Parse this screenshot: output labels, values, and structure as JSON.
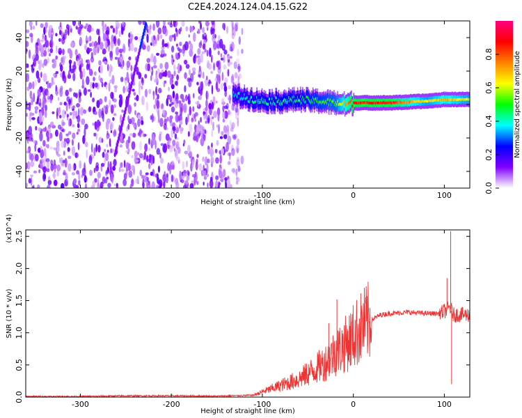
{
  "title": "C2E4.2024.124.04.15.G22",
  "chart_data": [
    {
      "type": "heatmap",
      "xlabel": "Height of straight line (km)",
      "ylabel": "Frequency (Hz)",
      "xlim": [
        -360,
        128
      ],
      "ylim": [
        -50,
        50
      ],
      "xticks": [
        -300,
        -200,
        -100,
        0,
        100
      ],
      "yticks": [
        -40,
        -20,
        0,
        20,
        40
      ],
      "colorbar": {
        "label": "Normalized spectral amplitude",
        "range": [
          0.0,
          1.0
        ],
        "ticks": [
          0.0,
          0.2,
          0.4,
          0.6,
          0.8
        ],
        "tick_labels": [
          "0.0",
          "0.2",
          "0.4",
          "0.6",
          "0.8"
        ],
        "colormap": [
          "#ffffff",
          "#8000ff",
          "#0000ff",
          "#00ffff",
          "#00ff00",
          "#ffff00",
          "#ff8000",
          "#ff0000",
          "#ff0080"
        ]
      },
      "noise_region_x": [
        -360,
        -122
      ],
      "signal_track": [
        {
          "x": -133,
          "freq": 6,
          "amp": 0.35
        },
        {
          "x": -120,
          "freq": 4,
          "amp": 0.4
        },
        {
          "x": -100,
          "freq": 2,
          "amp": 0.42
        },
        {
          "x": -80,
          "freq": 2,
          "amp": 0.45
        },
        {
          "x": -60,
          "freq": 3,
          "amp": 0.45
        },
        {
          "x": -40,
          "freq": 2,
          "amp": 0.5
        },
        {
          "x": -20,
          "freq": 1,
          "amp": 0.55
        },
        {
          "x": -10,
          "freq": 0,
          "amp": 0.7
        },
        {
          "x": 0,
          "freq": 1,
          "amp": 0.85
        },
        {
          "x": 40,
          "freq": 1,
          "amp": 0.85
        },
        {
          "x": 80,
          "freq": 2,
          "amp": 0.6
        },
        {
          "x": 100,
          "freq": 3,
          "amp": 0.7
        },
        {
          "x": 128,
          "freq": 3,
          "amp": 0.6
        }
      ],
      "streak": {
        "x_start": -262,
        "freq_start": -30,
        "x_end": -228,
        "freq_end": 48
      }
    },
    {
      "type": "line",
      "xlabel": "Height of straight line (km)",
      "ylabel": "SNR (10 * v/v)",
      "y_multiplier": "(x10^4)",
      "xlim": [
        -360,
        128
      ],
      "ylim": [
        0,
        2.6
      ],
      "xticks": [
        -300,
        -200,
        -100,
        0,
        100
      ],
      "yticks": [
        0.0,
        0.5,
        1.0,
        1.5,
        2.0,
        2.5
      ],
      "ytick_labels": [
        "0.0",
        "0.5",
        "1.0",
        "1.5",
        "2.0",
        "2.5"
      ],
      "color": "#ee3333",
      "series": [
        {
          "x": [
            -360,
            -300,
            -250,
            -200,
            -150,
            -110,
            -100,
            -80,
            -60,
            -40,
            -30,
            -20,
            -10,
            0,
            10,
            20,
            30,
            40,
            60,
            80,
            95,
            102,
            106,
            110,
            128
          ],
          "y": [
            0.01,
            0.01,
            0.02,
            0.02,
            0.015,
            0.03,
            0.08,
            0.18,
            0.28,
            0.45,
            0.55,
            0.7,
            0.8,
            0.95,
            1.1,
            1.2,
            1.28,
            1.3,
            1.32,
            1.3,
            1.3,
            1.35,
            1.4,
            1.28,
            1.28
          ]
        }
      ],
      "spikes": [
        {
          "x": -18,
          "y": 1.52
        },
        {
          "x": -27,
          "y": 1.15
        },
        {
          "x": 103,
          "y": 1.85
        },
        {
          "x": 107,
          "y": 2.58
        },
        {
          "x": 108,
          "y": 0.2
        }
      ]
    }
  ]
}
